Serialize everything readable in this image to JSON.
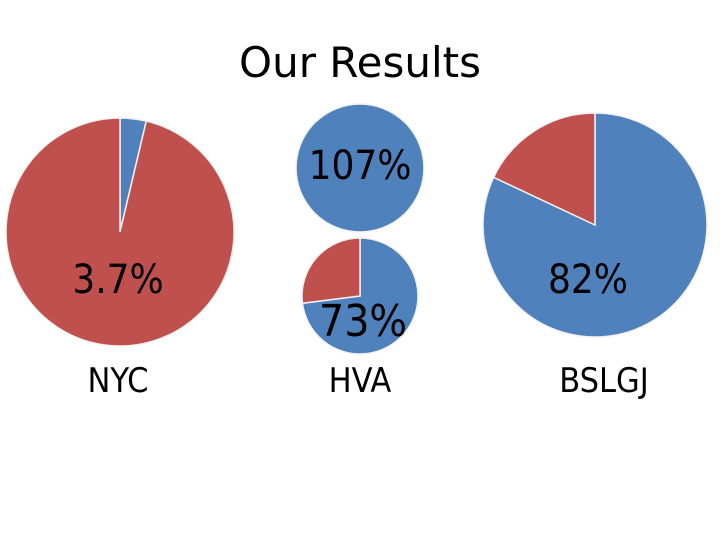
{
  "page": {
    "title": "Our Results"
  },
  "colors": {
    "blue": "#4f81bd",
    "red": "#c0504d",
    "edge": "#f2f2f2"
  },
  "chart_data": {
    "type": "pie",
    "charts": [
      {
        "category": "NYC",
        "label": "3.7%",
        "value": 3.7
      },
      {
        "category": "HVA",
        "label": "107%",
        "value": 107
      },
      {
        "category": "HVA",
        "label": "73%",
        "value": 73
      },
      {
        "category": "BSLGJ",
        "label": "82%",
        "value": 82
      }
    ]
  }
}
